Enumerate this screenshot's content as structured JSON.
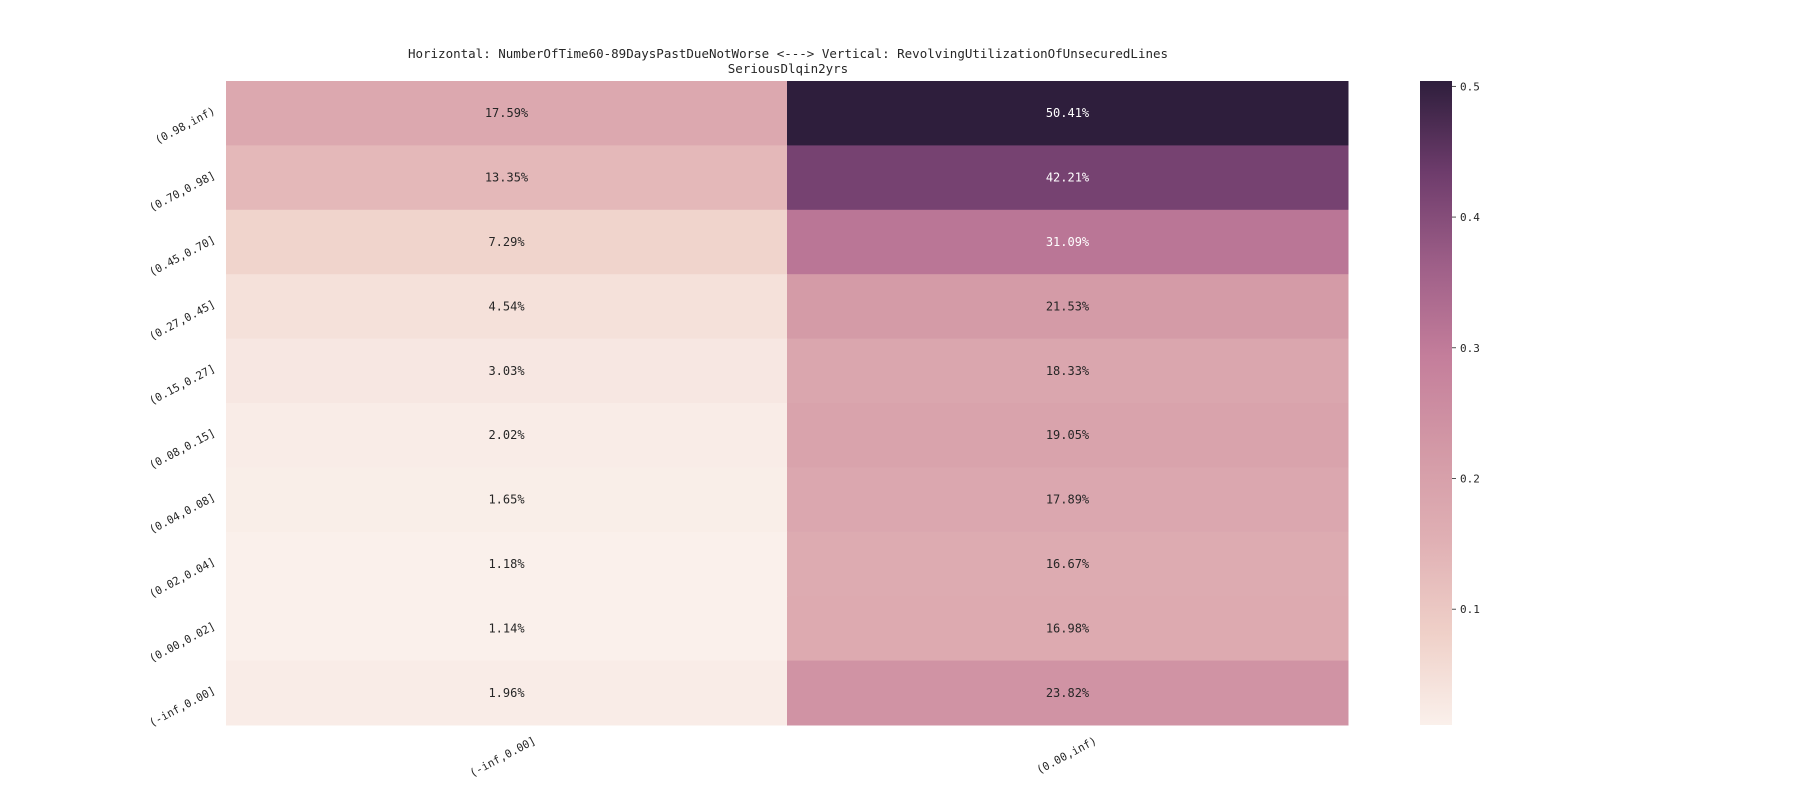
{
  "chart_data": {
    "type": "heatmap",
    "title": "Horizontal: NumberOfTime60-89DaysPastDueNotWorse <---> Vertical: RevolvingUtilizationOfUnsecuredLines",
    "subtitle": "SeriousDlqin2yrs",
    "x_categories": [
      "(-inf,0.00]",
      "(0.00,inf)"
    ],
    "y_categories": [
      "(0.98,inf)",
      "(0.70,0.98]",
      "(0.45,0.70]",
      "(0.27,0.45]",
      "(0.15,0.27]",
      "(0.08,0.15]",
      "(0.04,0.08]",
      "(0.02,0.04]",
      "(0.00,0.02]",
      "(-inf,0.00]"
    ],
    "values": [
      [
        0.1759,
        0.5041
      ],
      [
        0.1335,
        0.4221
      ],
      [
        0.0729,
        0.3109
      ],
      [
        0.0454,
        0.2153
      ],
      [
        0.0303,
        0.1833
      ],
      [
        0.0202,
        0.1905
      ],
      [
        0.0165,
        0.1789
      ],
      [
        0.0118,
        0.1667
      ],
      [
        0.0114,
        0.1698
      ],
      [
        0.0196,
        0.2382
      ]
    ],
    "cell_labels": [
      [
        "17.59%",
        "50.41%"
      ],
      [
        "13.35%",
        "42.21%"
      ],
      [
        "7.29%",
        "31.09%"
      ],
      [
        "4.54%",
        "21.53%"
      ],
      [
        "3.03%",
        "18.33%"
      ],
      [
        "2.02%",
        "19.05%"
      ],
      [
        "1.65%",
        "17.89%"
      ],
      [
        "1.18%",
        "16.67%"
      ],
      [
        "1.14%",
        "16.98%"
      ],
      [
        "1.96%",
        "23.82%"
      ]
    ],
    "colorbar": {
      "range": [
        0.0114,
        0.5041
      ],
      "ticks": [
        "0.1",
        "0.2",
        "0.3",
        "0.4",
        "0.5"
      ],
      "colormap": [
        "#faf0eb",
        "#efd0c8",
        "#e0b0b4",
        "#d399a6",
        "#c47e9b",
        "#9e5f88",
        "#6e3c6c",
        "#2e1e3c"
      ]
    },
    "grid": false
  }
}
